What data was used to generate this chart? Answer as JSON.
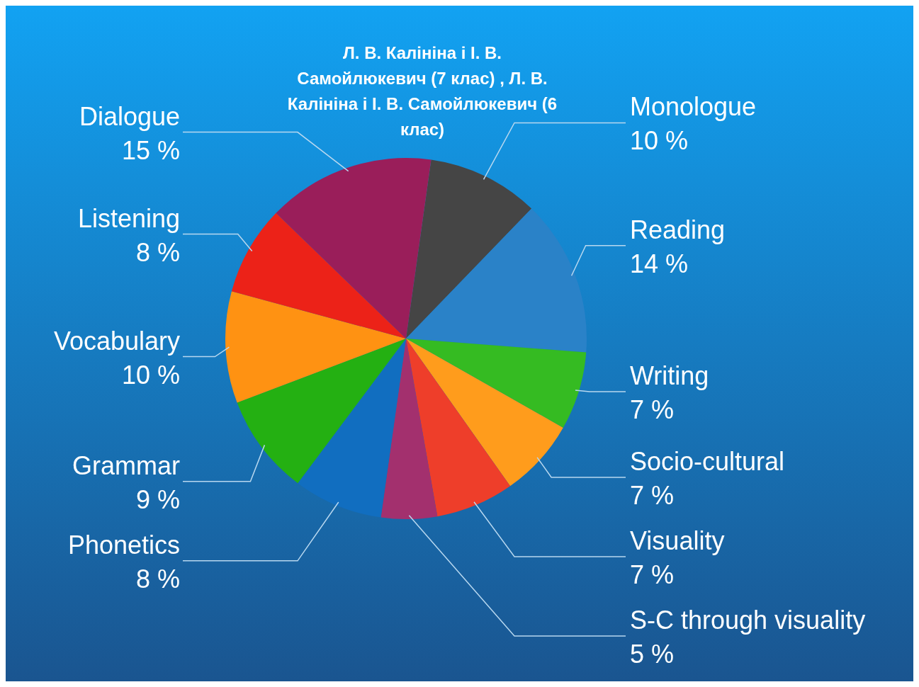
{
  "chart_data": {
    "type": "pie",
    "title": "Л. В. Калініна і І. В. Самойлюкевич (7 клас) , Л. В. Калініна і І. В. Самойлюкевич (6 клас)",
    "categories": [
      "Monologue",
      "Reading",
      "Writing",
      "Socio-cultural",
      "Visuality",
      "S-C through visuality",
      "Phonetics",
      "Grammar",
      "Vocabulary",
      "Listening",
      "Dialogue"
    ],
    "values": [
      10,
      14,
      7,
      7,
      7,
      5,
      8,
      9,
      10,
      8,
      15
    ],
    "value_labels": [
      "10 %",
      "14 %",
      "7 %",
      "7 %",
      "7 %",
      "5 %",
      "8 %",
      "9 %",
      "10 %",
      "8 %",
      "15 %"
    ],
    "colors": [
      "#454545",
      "#2a82c8",
      "#35bb22",
      "#ff9c1c",
      "#ee3e2a",
      "#a3306e",
      "#116ec0",
      "#24b012",
      "#ff9212",
      "#ec2218",
      "#9a1e5a"
    ]
  }
}
